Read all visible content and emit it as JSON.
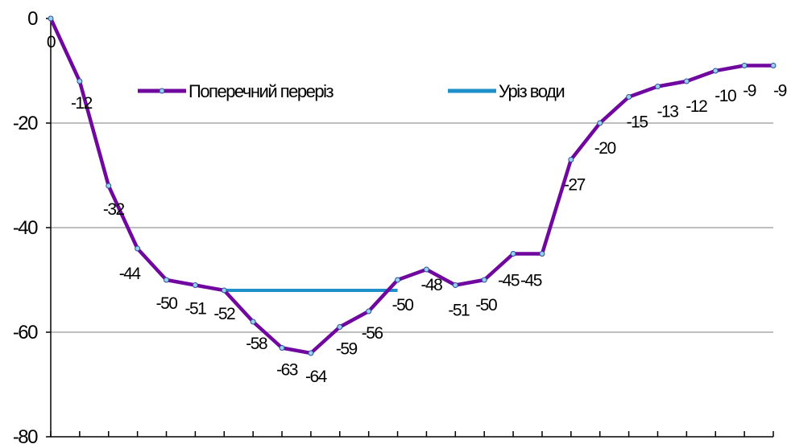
{
  "chart_data": {
    "type": "line",
    "x": [
      0,
      1,
      2,
      3,
      4,
      5,
      6,
      7,
      8,
      9,
      10,
      11,
      12,
      13,
      14,
      15,
      16,
      17,
      18,
      19,
      20,
      21,
      22,
      23,
      24,
      25
    ],
    "series": [
      {
        "name": "Поперечний переріз",
        "color": "#70079f",
        "values": [
          0,
          -12,
          -32,
          -44,
          -50,
          -51,
          -52,
          -58,
          -63,
          -64,
          -59,
          -56,
          -50,
          -48,
          -51,
          -50,
          -45,
          -45,
          -27,
          -20,
          -15,
          -13,
          -12,
          -10,
          -9,
          -9
        ],
        "labels": [
          "0",
          "-12",
          "-32",
          "-44",
          "-50",
          "-51",
          "-52",
          "-58",
          "-63",
          "-64",
          "-59",
          "-56",
          "-50",
          "-48",
          "-51",
          "-50",
          "-45",
          "-45",
          "-27",
          "-20",
          "-15",
          "-13",
          "-12",
          "-10",
          "-9",
          "-9"
        ]
      },
      {
        "name": "Уріз води",
        "color": "#1e8fc8",
        "x": [
          6,
          12
        ],
        "values": [
          -52,
          -52
        ]
      }
    ],
    "yticks": [
      "0",
      "-20",
      "-40",
      "-60",
      "-80"
    ],
    "ylim": [
      -80,
      0
    ],
    "grid": true,
    "legend_position": "top-center"
  }
}
